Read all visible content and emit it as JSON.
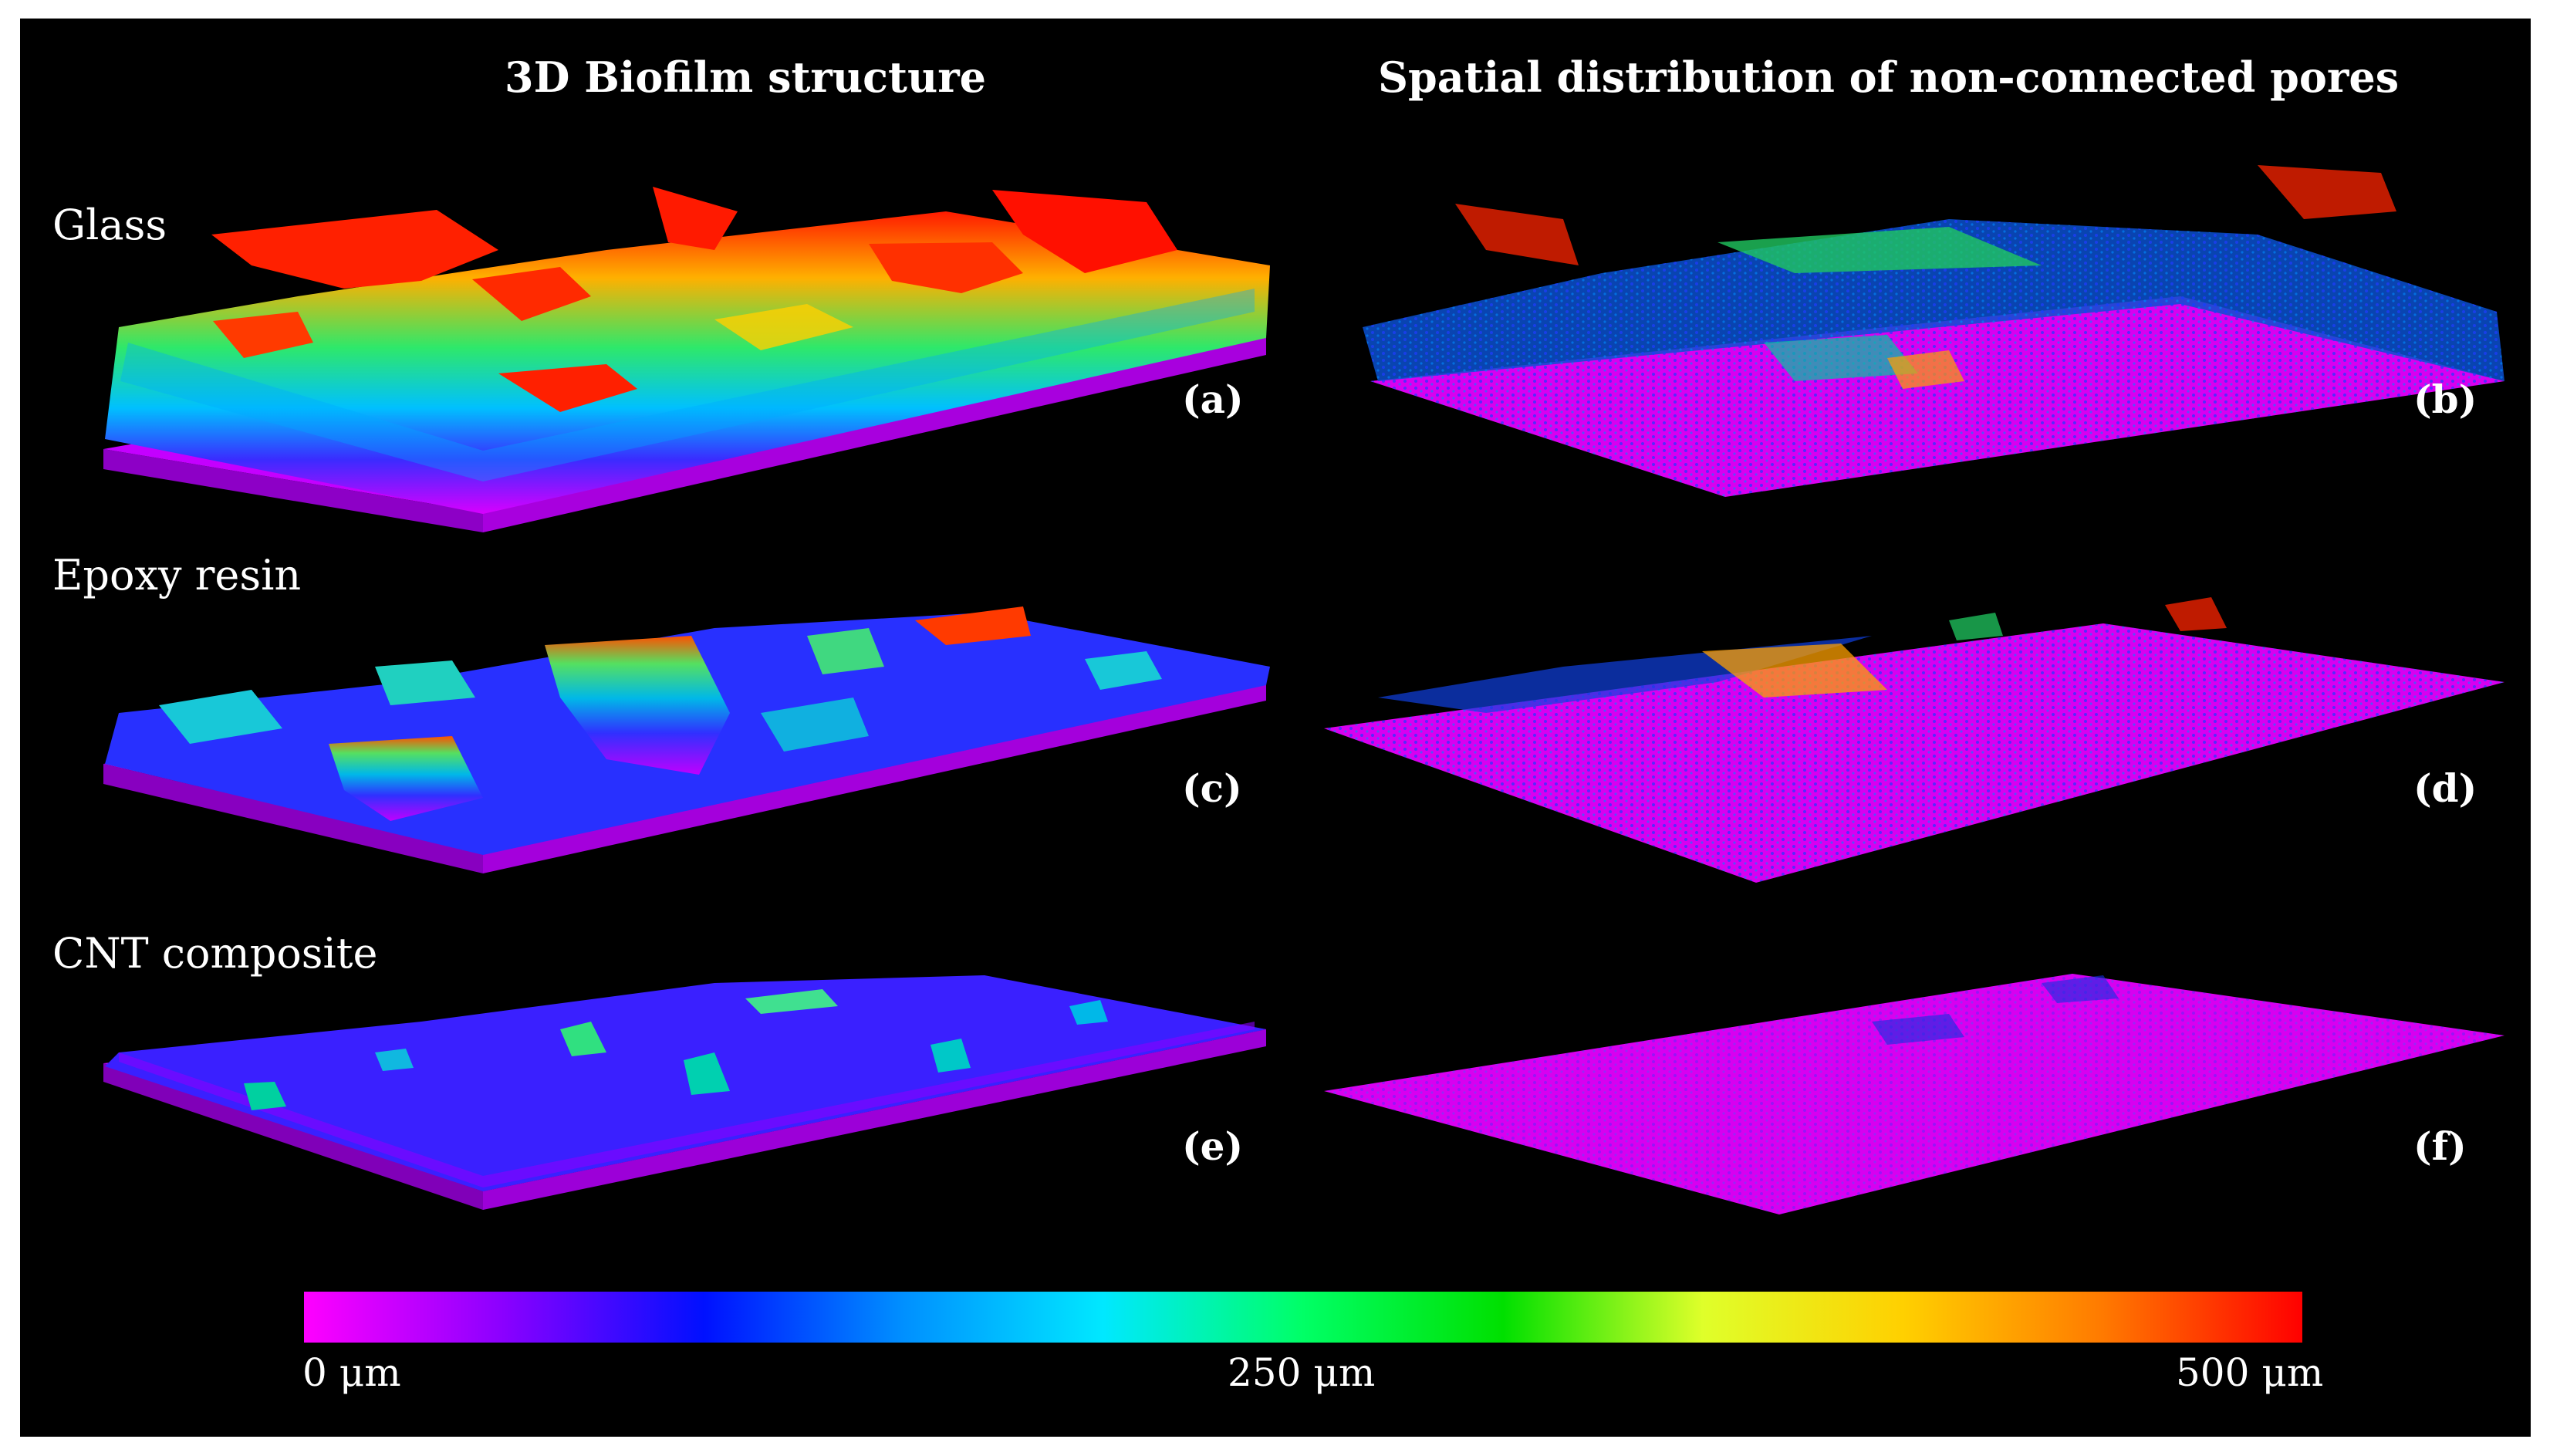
{
  "columns": {
    "left_title": "3D Biofilm structure",
    "right_title": "Spatial distribution of non-connected pores"
  },
  "rows": {
    "glass": "Glass",
    "epoxy": "Epoxy resin",
    "cnt": "CNT composite"
  },
  "panel_letters": [
    "(a)",
    "(b)",
    "(c)",
    "(d)",
    "(e)",
    "(f)"
  ],
  "colorbar": {
    "min_label": "0 μm",
    "mid_label": "250 μm",
    "max_label": "500 μm",
    "colors": [
      "#ff00ff",
      "#8a00ff",
      "#0010ff",
      "#0090ff",
      "#00e8ff",
      "#00ff66",
      "#00e000",
      "#dfff2a",
      "#ffd000",
      "#ff7a00",
      "#ff0000"
    ]
  }
}
